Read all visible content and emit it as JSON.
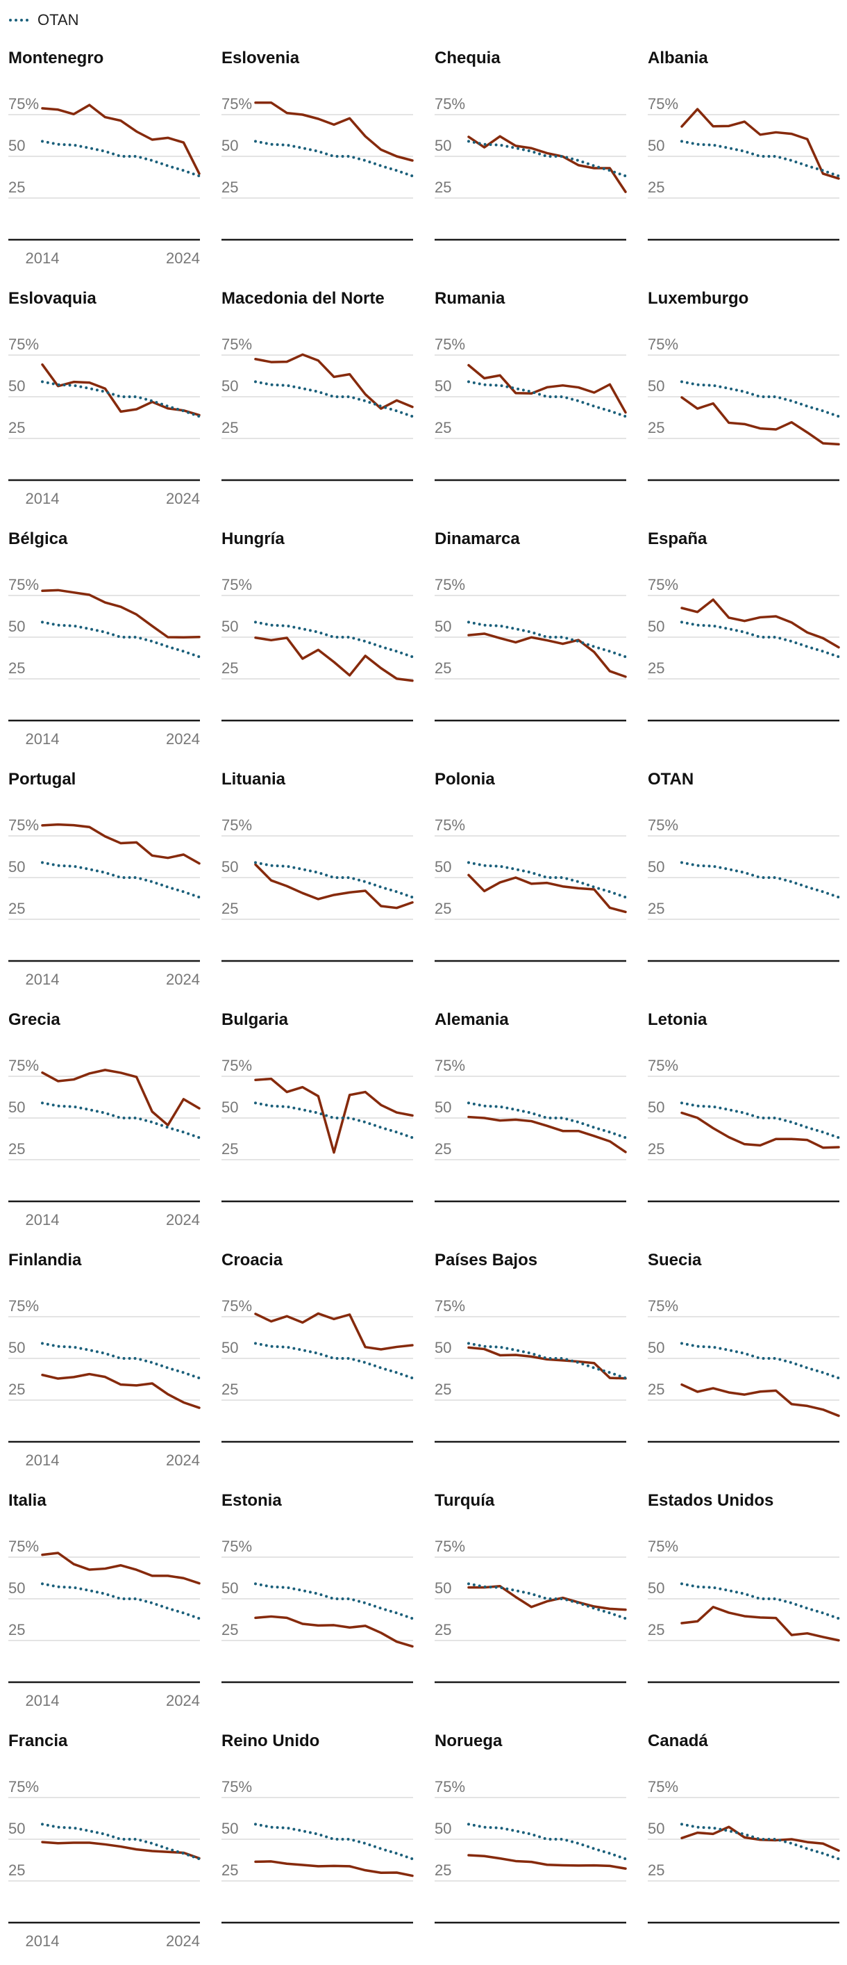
{
  "legend": {
    "label": "OTAN",
    "line_style": "dotted",
    "color": "#1a5f7a"
  },
  "chart_data": {
    "type": "line",
    "layout": "small-multiples",
    "grid": true,
    "years": [
      2014,
      2015,
      2016,
      2017,
      2018,
      2019,
      2020,
      2021,
      2022,
      2023,
      2024
    ],
    "x_tick_labels": [
      "2014",
      "2024"
    ],
    "y_tick_labels": [
      "75%",
      "50",
      "25"
    ],
    "y_ticks": [
      75,
      50,
      25
    ],
    "ylim": [
      0,
      80
    ],
    "country_color": "#862a0c",
    "otan_color": "#1a5f7a",
    "otan": [
      59,
      57.2,
      56.8,
      55,
      53,
      50,
      50,
      47.5,
      44.3,
      41.5,
      38.2
    ],
    "panels": [
      {
        "name": "Montenegro",
        "values": [
          78.8,
          78,
          75.3,
          80.8,
          73.5,
          71.4,
          64.9,
          60,
          61.1,
          58.3,
          39.6
        ]
      },
      {
        "name": "Eslovenia",
        "values": [
          82.2,
          82.2,
          76,
          75,
          72.5,
          69,
          72.8,
          62,
          54,
          50,
          47.5
        ]
      },
      {
        "name": "Chequia",
        "values": [
          61.7,
          55.4,
          62,
          56.3,
          54.9,
          51.9,
          49.9,
          44.7,
          42.9,
          42.9,
          28.7
        ]
      },
      {
        "name": "Albania",
        "values": [
          67.9,
          78.3,
          68,
          68.2,
          70.8,
          63,
          64.4,
          63.5,
          60.3,
          39.6,
          36.7
        ]
      },
      {
        "name": "Eslovaquia",
        "values": [
          69.3,
          56.4,
          58.9,
          58.5,
          54.9,
          41.1,
          42.5,
          46.9,
          43,
          41.8,
          39
        ]
      },
      {
        "name": "Macedonia del Norte",
        "values": [
          72.6,
          70.8,
          71,
          75.3,
          71.7,
          61.9,
          63.5,
          51.5,
          42.9,
          47.8,
          43.9
        ]
      },
      {
        "name": "Rumania",
        "values": [
          68.9,
          61.1,
          62.8,
          52.2,
          52,
          55.7,
          56.8,
          55.6,
          52.5,
          57.4,
          40.6
        ]
      },
      {
        "name": "Luxemburgo",
        "values": [
          49.6,
          42.9,
          46,
          34.4,
          33.6,
          31,
          30.4,
          34.7,
          28.6,
          22.1,
          21.5
        ]
      },
      {
        "name": "Bélgica",
        "values": [
          77.8,
          78.2,
          76.8,
          75.4,
          70.8,
          68.2,
          63.6,
          56.7,
          50,
          49.9,
          50.1
        ]
      },
      {
        "name": "Hungría",
        "values": [
          49.7,
          48.2,
          49.6,
          37.1,
          42.4,
          35.1,
          27.1,
          38.8,
          31.4,
          25.1,
          23.9
        ]
      },
      {
        "name": "Dinamarca",
        "values": [
          51.2,
          52.1,
          49.4,
          46.9,
          49.9,
          48.1,
          46,
          48.3,
          41.1,
          29.6,
          26.3
        ]
      },
      {
        "name": "España",
        "values": [
          67.5,
          65.1,
          72.5,
          61.7,
          59.7,
          61.9,
          62.5,
          58.8,
          52.8,
          49.4,
          43.9
        ]
      },
      {
        "name": "Portugal",
        "values": [
          81.3,
          81.8,
          81.4,
          80.3,
          74.7,
          70.6,
          71.1,
          63.2,
          61.8,
          63.8,
          58.5
        ]
      },
      {
        "name": "Lituania",
        "values": [
          57.8,
          48.3,
          44.9,
          40.7,
          37.1,
          39.6,
          41.1,
          42.1,
          32.9,
          31.8,
          35.1
        ]
      },
      {
        "name": "Polonia",
        "values": [
          51.5,
          41.9,
          47.1,
          50,
          46.3,
          46.8,
          44.7,
          43.6,
          42.9,
          31.9,
          29.4
        ]
      },
      {
        "name": "OTAN",
        "values": null
      },
      {
        "name": "Grecia",
        "values": [
          77.2,
          72.1,
          73.1,
          76.7,
          78.8,
          77.1,
          74.6,
          53.8,
          45.7,
          61.3,
          55.8
        ]
      },
      {
        "name": "Bulgaria",
        "values": [
          72.8,
          73.5,
          65.6,
          68.5,
          63.1,
          29.3,
          63.8,
          65.6,
          57.8,
          53.3,
          51.5
        ]
      },
      {
        "name": "Alemania",
        "values": [
          50.6,
          50,
          48.5,
          49,
          48.1,
          45.3,
          42.2,
          42.2,
          39.2,
          36,
          29.6
        ]
      },
      {
        "name": "Letonia",
        "values": [
          53.1,
          50.1,
          43.9,
          38.5,
          34.3,
          33.6,
          37.4,
          37.4,
          36.8,
          32.2,
          32.5
        ]
      },
      {
        "name": "Finlandia",
        "values": [
          40.1,
          37.9,
          38.8,
          40.6,
          38.9,
          34.3,
          33.8,
          35,
          28.5,
          23.6,
          20.4
        ]
      },
      {
        "name": "Croacia",
        "values": [
          76.7,
          72.2,
          75.3,
          71.5,
          76.9,
          73.6,
          76.3,
          56.8,
          55.4,
          56.9,
          57.9
        ]
      },
      {
        "name": "Países Bajos",
        "values": [
          56.5,
          55.6,
          51.9,
          52.1,
          51.1,
          49.4,
          48.8,
          48.1,
          47.2,
          38.3,
          38
        ]
      },
      {
        "name": "Suecia",
        "values": [
          34.3,
          30,
          32.1,
          29.6,
          28.3,
          30.1,
          30.7,
          22.6,
          21.5,
          19.3,
          15.6
        ]
      },
      {
        "name": "Italia",
        "values": [
          76.4,
          77.5,
          70.8,
          67.5,
          68.1,
          70.1,
          67.4,
          63.8,
          63.8,
          62.4,
          59.3
        ]
      },
      {
        "name": "Estonia",
        "values": [
          38.6,
          39.4,
          38.6,
          35,
          34,
          34.2,
          32.8,
          33.8,
          29.6,
          24.3,
          21.5
        ]
      },
      {
        "name": "Turquía",
        "values": [
          56.8,
          56.8,
          57.6,
          51.1,
          45.1,
          48.5,
          50.6,
          47.9,
          45.4,
          44,
          43.5
        ]
      },
      {
        "name": "Estados Unidos",
        "values": [
          35.4,
          36.5,
          45.1,
          41.7,
          39.6,
          38.8,
          38.5,
          28.3,
          29.3,
          27.1,
          25.1
        ]
      },
      {
        "name": "Francia",
        "values": [
          48.3,
          47.6,
          47.9,
          47.9,
          46.9,
          45.6,
          43.9,
          42.9,
          42.4,
          41.9,
          38.6
        ]
      },
      {
        "name": "Reino Unido",
        "values": [
          36.5,
          36.7,
          35.3,
          34.6,
          33.8,
          34,
          33.8,
          31.4,
          29.9,
          30,
          28.1
        ]
      },
      {
        "name": "Noruega",
        "values": [
          40.4,
          39.9,
          38.5,
          36.9,
          36.4,
          34.7,
          34.4,
          34.2,
          34.3,
          34,
          32.4
        ]
      },
      {
        "name": "Canadá",
        "values": [
          50.7,
          53.9,
          53.2,
          57.4,
          51.1,
          49.7,
          49.4,
          50,
          48.3,
          47.4,
          43.2
        ]
      }
    ]
  }
}
